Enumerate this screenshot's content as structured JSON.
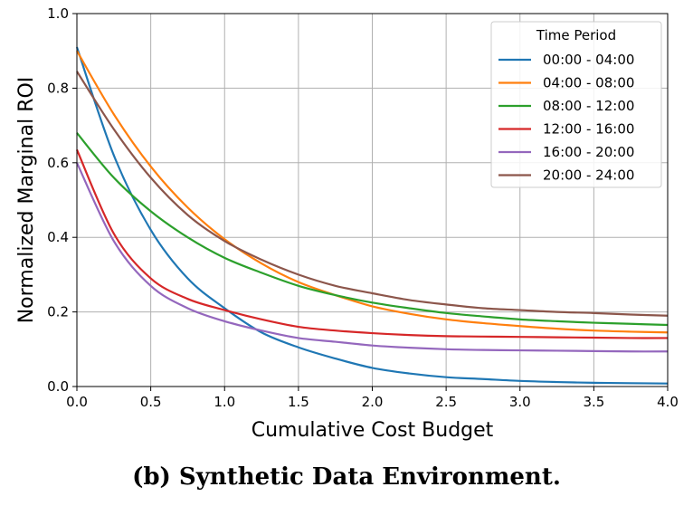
{
  "caption": "(b) Synthetic Data Environment.",
  "chart_data": {
    "type": "line",
    "xlabel": "Cumulative Cost Budget",
    "ylabel": "Normalized Marginal ROI",
    "xlim": [
      0,
      4
    ],
    "ylim": [
      0,
      1
    ],
    "xticks": [
      "0.0",
      "0.5",
      "1.0",
      "1.5",
      "2.0",
      "2.5",
      "3.0",
      "3.5",
      "4.0"
    ],
    "yticks": [
      "0.0",
      "0.2",
      "0.4",
      "0.6",
      "0.8",
      "1.0"
    ],
    "grid": true,
    "legend": {
      "title": "Time Period",
      "placement": "top-right"
    },
    "x": [
      0,
      0.25,
      0.5,
      0.75,
      1.0,
      1.25,
      1.5,
      1.75,
      2.0,
      2.25,
      2.5,
      2.75,
      3.0,
      3.25,
      3.5,
      3.75,
      4.0
    ],
    "series": [
      {
        "name": "00:00 - 04:00",
        "color": "#1f77b4",
        "values": [
          0.91,
          0.62,
          0.42,
          0.29,
          0.21,
          0.145,
          0.105,
          0.075,
          0.05,
          0.035,
          0.025,
          0.02,
          0.015,
          0.012,
          0.01,
          0.009,
          0.008
        ]
      },
      {
        "name": "04:00 - 08:00",
        "color": "#ff7f0e",
        "values": [
          0.9,
          0.73,
          0.59,
          0.48,
          0.395,
          0.33,
          0.28,
          0.245,
          0.215,
          0.195,
          0.18,
          0.17,
          0.162,
          0.155,
          0.15,
          0.147,
          0.145
        ]
      },
      {
        "name": "08:00 - 12:00",
        "color": "#2ca02c",
        "values": [
          0.68,
          0.56,
          0.47,
          0.4,
          0.345,
          0.305,
          0.27,
          0.245,
          0.225,
          0.21,
          0.197,
          0.188,
          0.18,
          0.175,
          0.171,
          0.168,
          0.165
        ]
      },
      {
        "name": "12:00 - 16:00",
        "color": "#d62728",
        "values": [
          0.635,
          0.41,
          0.29,
          0.235,
          0.205,
          0.18,
          0.16,
          0.15,
          0.143,
          0.138,
          0.135,
          0.134,
          0.133,
          0.132,
          0.131,
          0.13,
          0.13
        ]
      },
      {
        "name": "16:00 - 20:00",
        "color": "#9467bd",
        "values": [
          0.6,
          0.39,
          0.27,
          0.21,
          0.175,
          0.15,
          0.13,
          0.12,
          0.11,
          0.104,
          0.1,
          0.098,
          0.097,
          0.096,
          0.095,
          0.094,
          0.094
        ]
      },
      {
        "name": "20:00 - 24:00",
        "color": "#8c564b",
        "values": [
          0.845,
          0.69,
          0.56,
          0.46,
          0.39,
          0.34,
          0.3,
          0.27,
          0.25,
          0.232,
          0.22,
          0.21,
          0.205,
          0.2,
          0.197,
          0.193,
          0.19
        ]
      }
    ]
  }
}
